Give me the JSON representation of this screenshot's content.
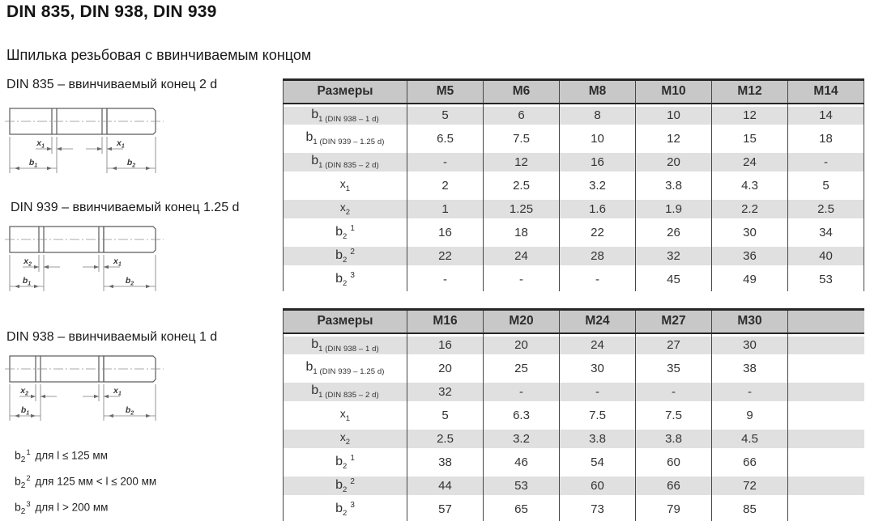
{
  "page": {
    "title": "DIN 835, DIN 938, DIN 939",
    "subtitle": "Шпилька резьбовая с ввинчиваемым концом"
  },
  "drawings": [
    {
      "caption": "DIN 835 – ввинчиваемый конец 2 d",
      "screw_end_ratio": "2 d",
      "dim_x_left": {
        "main": "x",
        "sub": "1"
      },
      "dim_x_right": {
        "main": "x",
        "sub": "1"
      },
      "dim_b_left": {
        "main": "b",
        "sub": "1"
      },
      "dim_b_right": {
        "main": "b",
        "sub": "2"
      }
    },
    {
      "caption": "DIN 939 – ввинчиваемый конец 1.25 d",
      "screw_end_ratio": "1.25 d",
      "dim_x_left": {
        "main": "x",
        "sub": "2"
      },
      "dim_x_right": {
        "main": "x",
        "sub": "1"
      },
      "dim_b_left": {
        "main": "b",
        "sub": "1"
      },
      "dim_b_right": {
        "main": "b",
        "sub": "2"
      }
    },
    {
      "caption": "DIN 938 – ввинчиваемый конец 1 d",
      "screw_end_ratio": "1 d",
      "dim_x_left": {
        "main": "x",
        "sub": "2"
      },
      "dim_x_right": {
        "main": "x",
        "sub": "1"
      },
      "dim_b_left": {
        "main": "b",
        "sub": "1"
      },
      "dim_b_right": {
        "main": "b",
        "sub": "2"
      }
    }
  ],
  "footnotes": [
    {
      "main": "b",
      "sub": "2",
      "sup": "1",
      "text": "для l ≤ 125 мм"
    },
    {
      "main": "b",
      "sub": "2",
      "sup": "2",
      "text": "для 125 мм < l ≤ 200 мм"
    },
    {
      "main": "b",
      "sub": "2",
      "sup": "3",
      "text": "для l > 200 мм"
    }
  ],
  "tables": [
    {
      "columns": [
        "Размеры",
        "M5",
        "M6",
        "M8",
        "M10",
        "M12",
        "M14"
      ],
      "rows": [
        {
          "label": {
            "main": "b",
            "sub": "1 (DIN 938 – 1 d)"
          },
          "values": [
            "5",
            "6",
            "8",
            "10",
            "12",
            "14"
          ]
        },
        {
          "label": {
            "main": "b",
            "sub": "1 (DIN 939 – 1.25 d)"
          },
          "values": [
            "6.5",
            "7.5",
            "10",
            "12",
            "15",
            "18"
          ]
        },
        {
          "label": {
            "main": "b",
            "sub": "1 (DIN 835 – 2 d)"
          },
          "values": [
            "-",
            "12",
            "16",
            "20",
            "24",
            "-"
          ]
        },
        {
          "label": {
            "main": "x",
            "sub": "1"
          },
          "values": [
            "2",
            "2.5",
            "3.2",
            "3.8",
            "4.3",
            "5"
          ]
        },
        {
          "label": {
            "main": "x",
            "sub": "2"
          },
          "values": [
            "1",
            "1.25",
            "1.6",
            "1.9",
            "2.2",
            "2.5"
          ]
        },
        {
          "label": {
            "main": "b",
            "sub": "2",
            "sup": "1"
          },
          "values": [
            "16",
            "18",
            "22",
            "26",
            "30",
            "34"
          ]
        },
        {
          "label": {
            "main": "b",
            "sub": "2",
            "sup": "2"
          },
          "values": [
            "22",
            "24",
            "28",
            "32",
            "36",
            "40"
          ]
        },
        {
          "label": {
            "main": "b",
            "sub": "2",
            "sup": "3"
          },
          "values": [
            "-",
            "-",
            "-",
            "45",
            "49",
            "53"
          ]
        }
      ]
    },
    {
      "columns": [
        "Размеры",
        "M16",
        "M20",
        "M24",
        "M27",
        "M30",
        ""
      ],
      "rows": [
        {
          "label": {
            "main": "b",
            "sub": "1 (DIN 938 – 1 d)"
          },
          "values": [
            "16",
            "20",
            "24",
            "27",
            "30",
            ""
          ]
        },
        {
          "label": {
            "main": "b",
            "sub": "1 (DIN 939 – 1.25 d)"
          },
          "values": [
            "20",
            "25",
            "30",
            "35",
            "38",
            ""
          ]
        },
        {
          "label": {
            "main": "b",
            "sub": "1 (DIN 835 – 2 d)"
          },
          "values": [
            "32",
            "-",
            "-",
            "-",
            "-",
            ""
          ]
        },
        {
          "label": {
            "main": "x",
            "sub": "1"
          },
          "values": [
            "5",
            "6.3",
            "7.5",
            "7.5",
            "9",
            ""
          ]
        },
        {
          "label": {
            "main": "x",
            "sub": "2"
          },
          "values": [
            "2.5",
            "3.2",
            "3.8",
            "3.8",
            "4.5",
            ""
          ]
        },
        {
          "label": {
            "main": "b",
            "sub": "2",
            "sup": "1"
          },
          "values": [
            "38",
            "46",
            "54",
            "60",
            "66",
            ""
          ]
        },
        {
          "label": {
            "main": "b",
            "sub": "2",
            "sup": "2"
          },
          "values": [
            "44",
            "53",
            "60",
            "66",
            "72",
            ""
          ]
        },
        {
          "label": {
            "main": "b",
            "sub": "2",
            "sup": "3"
          },
          "values": [
            "57",
            "65",
            "73",
            "79",
            "85",
            ""
          ]
        }
      ]
    }
  ],
  "colors": {
    "header_bg": "#c8c8c8",
    "stripe_bg": "#e0e0e0",
    "grid_border": "#474747",
    "heavy_border": "#262626",
    "text": "#333333"
  }
}
